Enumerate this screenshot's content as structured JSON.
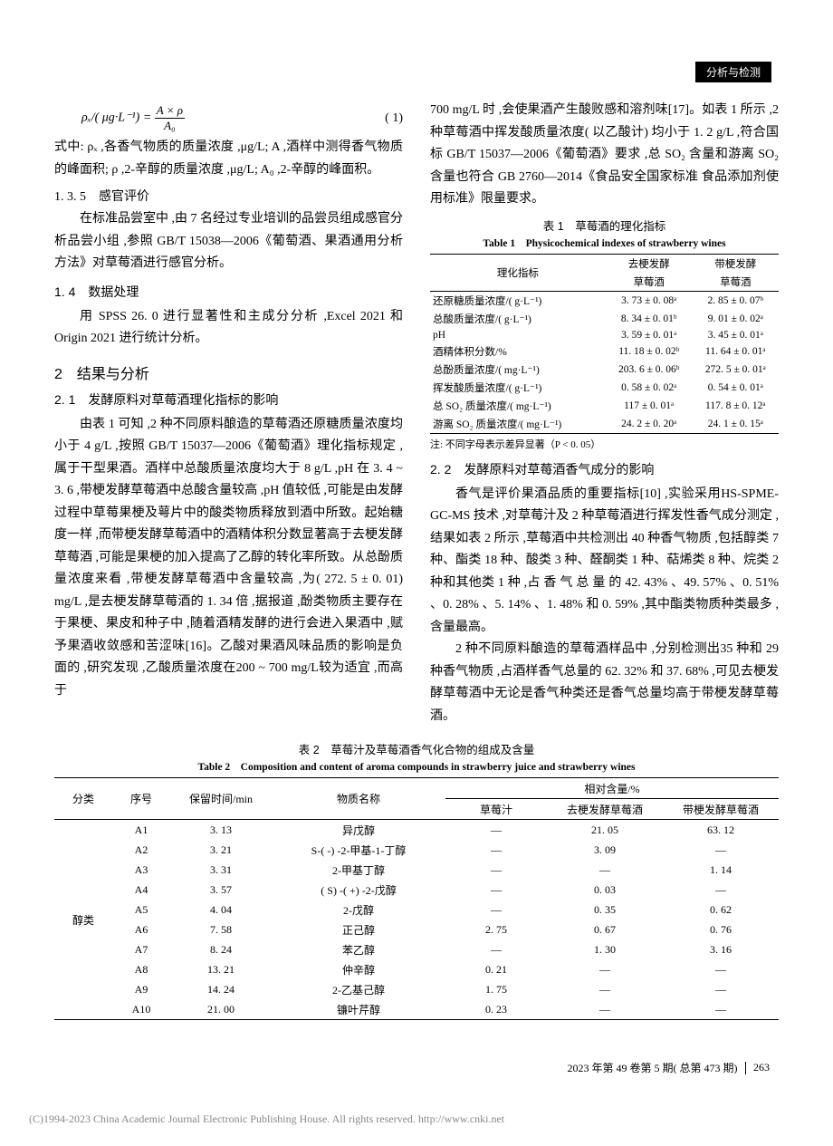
{
  "header": {
    "badge": "分析与检测"
  },
  "formula": {
    "lhs": "ρₓ/( μg·L⁻¹)",
    "eq": "=",
    "num": "A × ρ",
    "den": "A₀",
    "num_label": "( 1)"
  },
  "left": {
    "formula_explain": "式中: ρₓ ,各香气物质的质量浓度 ,μg/L; A ,酒样中测得香气物质的峰面积; ρ ,2-辛醇的质量浓度 ,μg/L; A₀ ,2-辛醇的峰面积。",
    "s135": "1. 3. 5　感官评价",
    "s135_body": "在标准品尝室中 ,由 7 名经过专业培训的品尝员组成感官分析品尝小组 ,参照 GB/T 15038—2006《葡萄酒、果酒通用分析方法》对草莓酒进行感官分析。",
    "s14": "1. 4　数据处理",
    "s14_body": "用 SPSS 26. 0 进行显著性和主成分分析 ,Excel 2021 和 Origin 2021 进行统计分析。",
    "sec2": "2　结果与分析",
    "s21": "2. 1　发酵原料对草莓酒理化指标的影响",
    "s21_body": "由表 1 可知 ,2 种不同原料酿造的草莓酒还原糖质量浓度均小于 4 g/L ,按照 GB/T 15037—2006《葡萄酒》理化指标规定 ,属于干型果酒。酒样中总酸质量浓度均大于 8 g/L ,pH 在 3. 4 ~ 3. 6 ,带梗发酵草莓酒中总酸含量较高 ,pH 值较低 ,可能是由发酵过程中草莓果梗及萼片中的酸类物质释放到酒中所致。起始糖度一样 ,而带梗发酵草莓酒中的酒精体积分数显著高于去梗发酵草莓酒 ,可能是果梗的加入提高了乙醇的转化率所致。从总酚质量浓度来看 ,带梗发酵草莓酒中含量较高 ,为( 272. 5 ± 0. 01) mg/L ,是去梗发酵草莓酒的 1. 34 倍 ,据报道 ,酚类物质主要存在于果梗、果皮和种子中 ,随着酒精发酵的进行会进入果酒中 ,赋予果酒收敛感和苦涩味[16]。乙酸对果酒风味品质的影响是负面的 ,研究发现 ,乙酸质量浓度在200 ~ 700 mg/L较为适宜 ,而高于"
  },
  "right": {
    "top_body": "700 mg/L 时 ,会使果酒产生酸败感和溶剂味[17]。如表 1 所示 ,2 种草莓酒中挥发酸质量浓度( 以乙酸计) 均小于 1. 2 g/L ,符合国标 GB/T 15037—2006《葡萄酒》要求 ,总 SO₂ 含量和游离 SO₂ 含量也符合 GB 2760—2014《食品安全国家标准 食品添加剂使用标准》限量要求。",
    "tbl1_title_cn": "表 1　草莓酒的理化指标",
    "tbl1_title_en": "Table 1　Physicochemical indexes of strawberry wines",
    "tbl1_headers": {
      "c1": "理化指标",
      "c2_l1": "去梗发酵",
      "c2_l2": "草莓酒",
      "c3_l1": "带梗发酵",
      "c3_l2": "草莓酒"
    },
    "tbl1_rows": [
      {
        "label": "还原糖质量浓度/( g·L⁻¹)",
        "a": "3. 73 ± 0. 08ᵃ",
        "b": "2. 85 ± 0. 07ᵇ"
      },
      {
        "label": "总酸质量浓度/( g·L⁻¹)",
        "a": "8. 34 ± 0. 01ᵇ",
        "b": "9. 01 ± 0. 02ᵃ"
      },
      {
        "label": "pH",
        "a": "3. 59 ± 0. 01ᵃ",
        "b": "3. 45 ± 0. 01ᵃ"
      },
      {
        "label": "酒精体积分数/%",
        "a": "11. 18 ± 0. 02ᵇ",
        "b": "11. 64 ± 0. 01ᵃ"
      },
      {
        "label": "总酚质量浓度/( mg·L⁻¹)",
        "a": "203. 6 ± 0. 06ᵇ",
        "b": "272. 5 ± 0. 01ᵃ"
      },
      {
        "label": "挥发酸质量浓度/( g·L⁻¹)",
        "a": "0. 58 ± 0. 02ᵃ",
        "b": "0. 54 ± 0. 01ᵃ"
      },
      {
        "label": "总 SO₂ 质量浓度/( mg·L⁻¹)",
        "a": "117 ± 0. 01ᵃ",
        "b": "117. 8 ± 0. 12ᵃ"
      },
      {
        "label": "游离 SO₂ 质量浓度/( mg·L⁻¹)",
        "a": "24. 2 ± 0. 20ᵃ",
        "b": "24. 1 ± 0. 15ᵃ"
      }
    ],
    "tbl1_note": "注: 不同字母表示差异显著（P < 0. 05）",
    "s22": "2. 2　发酵原料对草莓酒香气成分的影响",
    "s22_body1": "香气是评价果酒品质的重要指标[10] ,实验采用HS-SPME-GC-MS 技术 ,对草莓汁及 2 种草莓酒进行挥发性香气成分测定 ,结果如表 2 所示 ,草莓酒中共检测出 40 种香气物质 ,包括醇类 7 种、酯类 18 种、酸类 3 种、醛酮类 1 种、萜烯类 8 种、烷类 2 种和其他类 1 种 ,占 香 气 总 量 的 42. 43% 、49. 57% 、0. 51% 、0. 28% 、5. 14% 、1. 48% 和 0. 59% ,其中酯类物质种类最多 ,含量最高。",
    "s22_body2": "2 种不同原料酿造的草莓酒样品中 ,分别检测出35 种和 29 种香气物质 ,占酒样香气总量的 62. 32% 和 37. 68% ,可见去梗发酵草莓酒中无论是香气种类还是香气总量均高于带梗发酵草莓酒。"
  },
  "tbl2": {
    "title_cn": "表 2　草莓汁及草莓酒香气化合物的组成及含量",
    "title_en": "Table 2　Composition and content of aroma compounds in strawberry juice and strawberry wines",
    "headers": {
      "cat": "分类",
      "idx": "序号",
      "rt": "保留时间/min",
      "name": "物质名称",
      "rel": "相对含量/%",
      "r1": "草莓汁",
      "r2": "去梗发酵草莓酒",
      "r3": "带梗发酵草莓酒"
    },
    "category": "醇类",
    "rows": [
      {
        "idx": "A1",
        "rt": "3. 13",
        "name": "异戊醇",
        "v1": "—",
        "v2": "21. 05",
        "v3": "63. 12"
      },
      {
        "idx": "A2",
        "rt": "3. 21",
        "name": "S-( -) -2-甲基-1-丁醇",
        "v1": "—",
        "v2": "3. 09",
        "v3": "—"
      },
      {
        "idx": "A3",
        "rt": "3. 31",
        "name": "2-甲基丁醇",
        "v1": "—",
        "v2": "—",
        "v3": "1. 14"
      },
      {
        "idx": "A4",
        "rt": "3. 57",
        "name": "( S) -( +) -2-戊醇",
        "v1": "—",
        "v2": "0. 03",
        "v3": "—"
      },
      {
        "idx": "A5",
        "rt": "4. 04",
        "name": "2-戊醇",
        "v1": "—",
        "v2": "0. 35",
        "v3": "0. 62"
      },
      {
        "idx": "A6",
        "rt": "7. 58",
        "name": "正己醇",
        "v1": "2. 75",
        "v2": "0. 67",
        "v3": "0. 76"
      },
      {
        "idx": "A7",
        "rt": "8. 24",
        "name": "苯乙醇",
        "v1": "—",
        "v2": "1. 30",
        "v3": "3. 16"
      },
      {
        "idx": "A8",
        "rt": "13. 21",
        "name": "仲辛醇",
        "v1": "0. 21",
        "v2": "—",
        "v3": "—"
      },
      {
        "idx": "A9",
        "rt": "14. 24",
        "name": "2-乙基己醇",
        "v1": "1. 75",
        "v2": "—",
        "v3": "—"
      },
      {
        "idx": "A10",
        "rt": "21. 00",
        "name": "镰叶芹醇",
        "v1": "0. 23",
        "v2": "—",
        "v3": "—"
      }
    ]
  },
  "footer": {
    "left": "2023 年第 49 卷第 5 期( 总第 473 期)",
    "page": "263"
  },
  "copyright": "(C)1994-2023 China Academic Journal Electronic Publishing House. All rights reserved.    http://www.cnki.net"
}
